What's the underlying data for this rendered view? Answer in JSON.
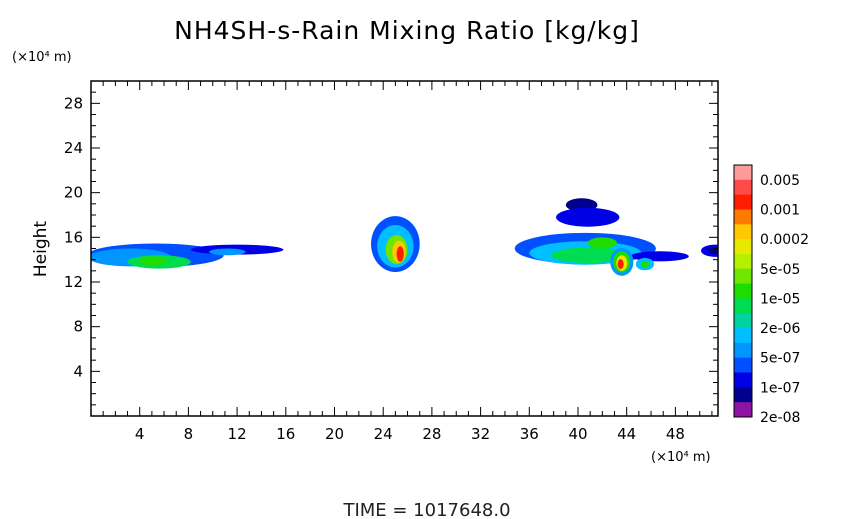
{
  "chart_data": {
    "type": "heatmap",
    "title": "NH4SH-s-Rain Mixing Ratio [kg/kg]",
    "xlabel": "",
    "ylabel": "Height",
    "x_units": "(×10⁴ m)",
    "y_units": "(×10⁴ m)",
    "xlim": [
      0,
      51.5
    ],
    "ylim": [
      0,
      30
    ],
    "xticks": [
      "4",
      "8",
      "12",
      "16",
      "20",
      "24",
      "28",
      "32",
      "36",
      "40",
      "44",
      "48"
    ],
    "yticks": [
      "4",
      "8",
      "12",
      "16",
      "20",
      "24",
      "28"
    ],
    "colorbar": {
      "labels": [
        "0.005",
        "0.001",
        "0.0002",
        "5e-05",
        "1e-05",
        "2e-06",
        "5e-07",
        "1e-07",
        "2e-08"
      ],
      "colors": [
        "#ff9a9a",
        "#ff4a4a",
        "#ff1e00",
        "#ff7a00",
        "#ffc800",
        "#e8e800",
        "#b4f000",
        "#6ee600",
        "#1edc00",
        "#00dc50",
        "#00d2a0",
        "#00beff",
        "#0096ff",
        "#0050ff",
        "#0000e6",
        "#00008c",
        "#8c14a0"
      ]
    },
    "regions": [
      {
        "x": 5.3,
        "y": 14.4,
        "rx": 5.6,
        "ry": 1.05,
        "level": 3
      },
      {
        "x": 3.2,
        "y": 14.2,
        "rx": 3.4,
        "ry": 0.8,
        "level": 4
      },
      {
        "x": 5.6,
        "y": 13.8,
        "rx": 2.6,
        "ry": 0.6,
        "level": 7
      },
      {
        "x": 5.1,
        "y": 13.9,
        "rx": 1.2,
        "ry": 0.4,
        "level": 8
      },
      {
        "x": 12.0,
        "y": 14.9,
        "rx": 3.8,
        "ry": 0.45,
        "level": 2
      },
      {
        "x": 11.2,
        "y": 14.7,
        "rx": 1.5,
        "ry": 0.3,
        "level": 4
      },
      {
        "x": 25.0,
        "y": 15.4,
        "rx": 2.0,
        "ry": 2.5,
        "level": 3
      },
      {
        "x": 25.0,
        "y": 15.2,
        "rx": 1.5,
        "ry": 1.9,
        "level": 5
      },
      {
        "x": 25.1,
        "y": 14.9,
        "rx": 0.9,
        "ry": 1.3,
        "level": 9
      },
      {
        "x": 25.3,
        "y": 14.7,
        "rx": 0.55,
        "ry": 1.0,
        "level": 12
      },
      {
        "x": 25.4,
        "y": 14.5,
        "rx": 0.3,
        "ry": 0.7,
        "level": 14
      },
      {
        "x": 40.3,
        "y": 18.9,
        "rx": 1.3,
        "ry": 0.6,
        "level": 1
      },
      {
        "x": 40.8,
        "y": 17.8,
        "rx": 2.6,
        "ry": 0.85,
        "level": 2
      },
      {
        "x": 40.6,
        "y": 15.0,
        "rx": 5.8,
        "ry": 1.4,
        "level": 3
      },
      {
        "x": 40.6,
        "y": 14.6,
        "rx": 4.6,
        "ry": 1.05,
        "level": 5
      },
      {
        "x": 41.0,
        "y": 14.4,
        "rx": 3.2,
        "ry": 0.7,
        "level": 7
      },
      {
        "x": 42.0,
        "y": 15.5,
        "rx": 1.2,
        "ry": 0.5,
        "level": 8
      },
      {
        "x": 46.7,
        "y": 14.3,
        "rx": 2.4,
        "ry": 0.45,
        "level": 2
      },
      {
        "x": 45.5,
        "y": 13.6,
        "rx": 0.75,
        "ry": 0.55,
        "level": 5
      },
      {
        "x": 45.5,
        "y": 13.6,
        "rx": 0.35,
        "ry": 0.3,
        "level": 8
      },
      {
        "x": 43.6,
        "y": 13.8,
        "rx": 0.95,
        "ry": 1.25,
        "level": 4
      },
      {
        "x": 43.6,
        "y": 13.8,
        "rx": 0.7,
        "ry": 0.95,
        "level": 8
      },
      {
        "x": 43.6,
        "y": 13.7,
        "rx": 0.45,
        "ry": 0.7,
        "level": 11
      },
      {
        "x": 43.5,
        "y": 13.6,
        "rx": 0.25,
        "ry": 0.45,
        "level": 14
      },
      {
        "x": 51.3,
        "y": 14.8,
        "rx": 1.2,
        "ry": 0.55,
        "level": 2
      },
      {
        "x": 51.3,
        "y": 14.8,
        "rx": 0.6,
        "ry": 0.3,
        "level": 1
      }
    ],
    "grid": false
  },
  "header": {
    "units_top": "(×10⁴ m)"
  },
  "footer": {
    "units_bottom": "(×10⁴ m)",
    "time_label": "TIME  =  1017648.0"
  }
}
